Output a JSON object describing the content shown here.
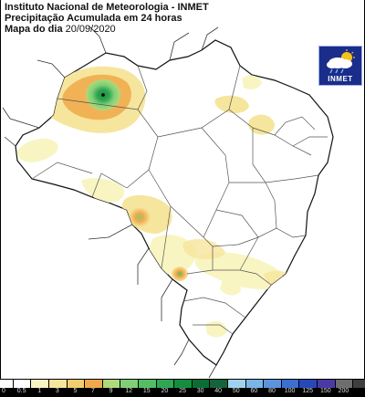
{
  "header": {
    "line1": "Instituto Nacional de Meteorologia - INMET",
    "line2": "Precipitação Acumulada em 24 horas",
    "date_label": "Mapa do dia",
    "date": "20/09/2020"
  },
  "logo": {
    "text": "INMET",
    "icon": "cloud-sun-rain-icon"
  },
  "legend": {
    "labels": [
      "0",
      "0.5",
      "1",
      "3",
      "5",
      "7",
      "9",
      "12",
      "15",
      "20",
      "25",
      "30",
      "40",
      "50",
      "60",
      "80",
      "100",
      "125",
      "150",
      "200"
    ],
    "colors": [
      "#ffffff",
      "#ffffff",
      "#f8f5c2",
      "#f6e59c",
      "#f2ce6f",
      "#f0a94a",
      "#aeda7c",
      "#7fcf76",
      "#52bd62",
      "#2fa653",
      "#158d40",
      "#0a6e33",
      "#13643a",
      "#9fd1ef",
      "#7bb4e8",
      "#5a93de",
      "#3b6fd2",
      "#2848b7",
      "#4a3aa6",
      "#6e6e6e",
      "#3e3e3e"
    ]
  }
}
